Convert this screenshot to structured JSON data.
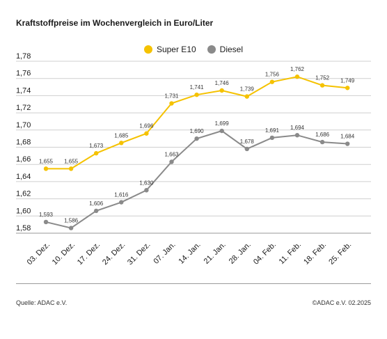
{
  "title": "Kraftstoffpreise im Wochenvergleich in Euro/Liter",
  "footer": {
    "source": "Quelle: ADAC e.V.",
    "copyright": "©ADAC e.V. 02.2025"
  },
  "colors": {
    "super": "#f5c200",
    "diesel": "#8a8a8a",
    "grid": "#cfcfcf",
    "axis": "#9a9a9a"
  },
  "chart_data": {
    "type": "line",
    "title": "Kraftstoffpreise im Wochenvergleich in Euro/Liter",
    "x": [
      "03. Dez.",
      "10. Dez.",
      "17. Dez.",
      "24. Dez.",
      "31. Dez.",
      "07. Jan.",
      "14. Jan.",
      "21. Jan.",
      "28. Jan.",
      "04. Feb.",
      "11. Feb.",
      "18. Feb.",
      "25. Feb."
    ],
    "series": [
      {
        "name": "Super E10",
        "values": [
          1.655,
          1.655,
          1.673,
          1.685,
          1.696,
          1.731,
          1.741,
          1.746,
          1.739,
          1.756,
          1.762,
          1.752,
          1.749
        ]
      },
      {
        "name": "Diesel",
        "values": [
          1.593,
          1.586,
          1.606,
          1.616,
          1.63,
          1.663,
          1.69,
          1.699,
          1.678,
          1.691,
          1.694,
          1.686,
          1.684
        ]
      }
    ],
    "yticks": [
      "1,58",
      "1,60",
      "1,62",
      "1,64",
      "1,66",
      "1,68",
      "1,70",
      "1,72",
      "1,74",
      "1,76",
      "1,78"
    ],
    "ylim": [
      1.58,
      1.78
    ],
    "grid": true,
    "legend": "top-center"
  }
}
